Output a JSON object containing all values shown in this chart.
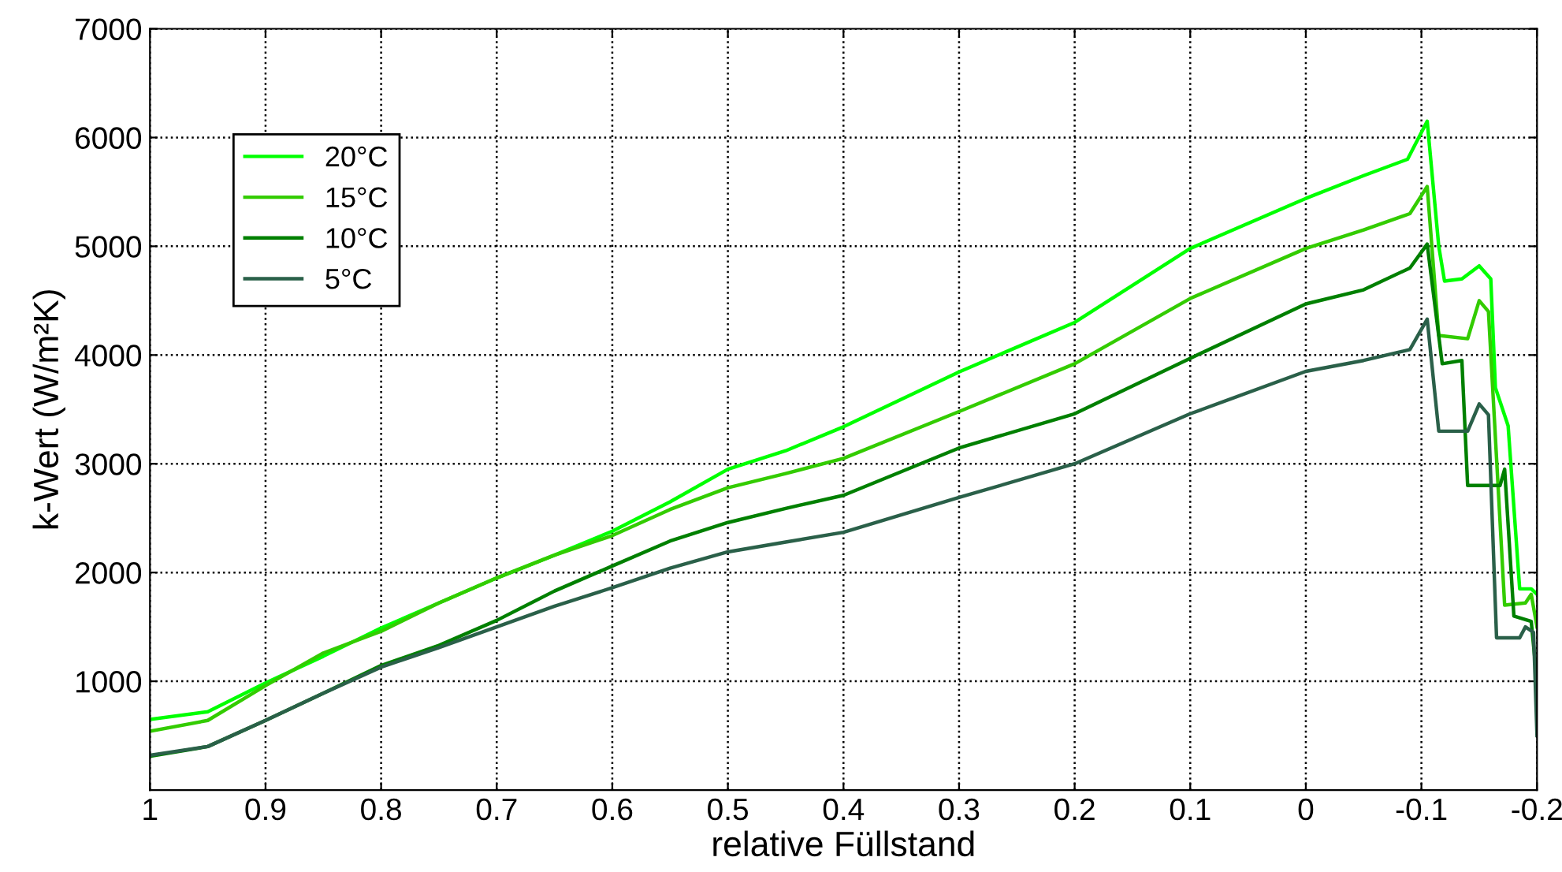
{
  "chart_data": {
    "type": "line",
    "xlabel": "relative Füllstand",
    "ylabel": "k-Wert (W/m²K)",
    "xlim": [
      1,
      -0.2
    ],
    "ylim": [
      0,
      7000
    ],
    "xticks": [
      1,
      0.9,
      0.8,
      0.7,
      0.6,
      0.5,
      0.4,
      0.3,
      0.2,
      0.1,
      0,
      -0.1,
      -0.2
    ],
    "yticks": [
      1000,
      2000,
      3000,
      4000,
      5000,
      6000,
      7000
    ],
    "grid": true,
    "legend": "top left",
    "marker": "none",
    "line_style": "solid",
    "series": [
      {
        "name": "20°C",
        "color": "#00ff00",
        "x": [
          1,
          0.95,
          0.9,
          0.85,
          0.8,
          0.75,
          0.7,
          0.65,
          0.6,
          0.55,
          0.5,
          0.45,
          0.4,
          0.3,
          0.2,
          0.1,
          0,
          -0.05,
          -0.088,
          -0.105,
          -0.115,
          -0.12,
          -0.135,
          -0.15,
          -0.16,
          -0.164,
          -0.175,
          -0.185,
          -0.195,
          -0.2
        ],
        "values": [
          650,
          720,
          985,
          1230,
          1490,
          1720,
          1950,
          2160,
          2380,
          2650,
          2950,
          3120,
          3340,
          3845,
          4300,
          4980,
          5440,
          5650,
          5800,
          6150,
          5000,
          4680,
          4700,
          4820,
          4700,
          3700,
          3350,
          1850,
          1850,
          1800
        ]
      },
      {
        "name": "15°C",
        "color": "#33cc00",
        "x": [
          1,
          0.95,
          0.9,
          0.85,
          0.8,
          0.75,
          0.7,
          0.65,
          0.6,
          0.55,
          0.5,
          0.45,
          0.4,
          0.3,
          0.2,
          0.1,
          0,
          -0.05,
          -0.09,
          -0.105,
          -0.115,
          -0.14,
          -0.15,
          -0.158,
          -0.172,
          -0.19,
          -0.195,
          -0.2
        ],
        "values": [
          540,
          640,
          960,
          1260,
          1460,
          1720,
          1950,
          2160,
          2340,
          2580,
          2780,
          2910,
          3050,
          3480,
          3920,
          4520,
          4980,
          5150,
          5300,
          5550,
          4180,
          4150,
          4500,
          4400,
          1700,
          1720,
          1800,
          1500
        ]
      },
      {
        "name": "10°C",
        "color": "#008000",
        "x": [
          1,
          0.95,
          0.9,
          0.85,
          0.8,
          0.75,
          0.7,
          0.65,
          0.6,
          0.55,
          0.5,
          0.45,
          0.4,
          0.3,
          0.2,
          0.1,
          0,
          -0.05,
          -0.09,
          -0.105,
          -0.118,
          -0.135,
          -0.14,
          -0.168,
          -0.172,
          -0.18,
          -0.195,
          -0.2
        ],
        "values": [
          310,
          400,
          640,
          890,
          1145,
          1330,
          1560,
          1830,
          2060,
          2290,
          2460,
          2590,
          2710,
          3145,
          3460,
          3970,
          4470,
          4600,
          4800,
          5020,
          3920,
          3950,
          2800,
          2800,
          2950,
          1600,
          1550,
          1000
        ]
      },
      {
        "name": "5°C",
        "color": "#2a6049",
        "x": [
          1,
          0.95,
          0.9,
          0.85,
          0.8,
          0.75,
          0.7,
          0.65,
          0.6,
          0.55,
          0.5,
          0.45,
          0.4,
          0.3,
          0.2,
          0.1,
          0,
          -0.05,
          -0.09,
          -0.105,
          -0.115,
          -0.14,
          -0.15,
          -0.158,
          -0.165,
          -0.185,
          -0.19,
          -0.197,
          -0.2
        ],
        "values": [
          320,
          400,
          640,
          890,
          1130,
          1310,
          1500,
          1690,
          1860,
          2040,
          2190,
          2280,
          2370,
          2690,
          3000,
          3460,
          3850,
          3950,
          4050,
          4330,
          3300,
          3300,
          3550,
          3450,
          1400,
          1400,
          1500,
          1450,
          500
        ]
      }
    ]
  }
}
